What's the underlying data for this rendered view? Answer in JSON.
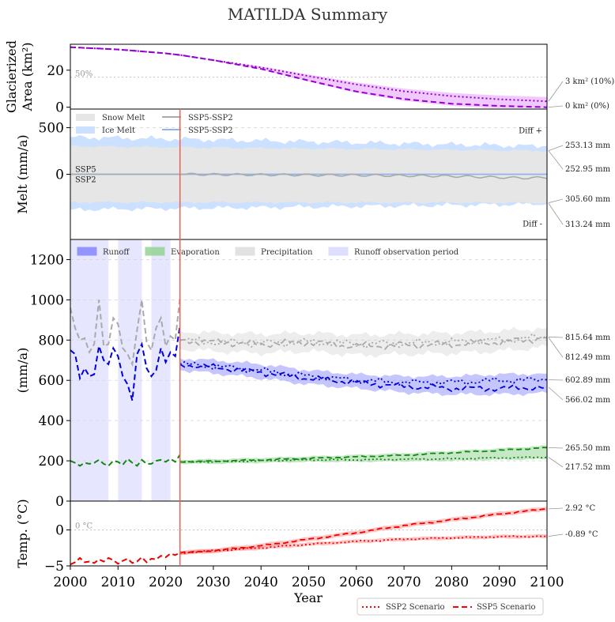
{
  "chart_data": {
    "type": "line",
    "title": "MATILDA Summary",
    "x_axis": {
      "label": "Year",
      "range": [
        2000,
        2100
      ],
      "ticks": [
        "2000",
        "2010",
        "2020",
        "2030",
        "2040",
        "2050",
        "2060",
        "2070",
        "2080",
        "2090",
        "2100"
      ]
    },
    "observation_marker_year": 2023,
    "scenario_legend": [
      {
        "label": "SSP2 Scenario",
        "style": "dotted",
        "color": "#ff0000"
      },
      {
        "label": "SSP5 Scenario",
        "style": "dashed",
        "color": "#ff0000"
      }
    ],
    "panels": [
      {
        "id": "glacier",
        "ylabel_lines": [
          "Glacierized",
          "Area (km²)"
        ],
        "ylim": [
          -1,
          34
        ],
        "yticks": [
          "0",
          "20"
        ],
        "reference_line": {
          "value": 16.2,
          "label": "50%"
        },
        "series": [
          {
            "name": "SSP2",
            "color": "#9400d3",
            "x": [
              2000,
              2010,
              2020,
              2023,
              2030,
              2040,
              2050,
              2060,
              2070,
              2080,
              2090,
              2100
            ],
            "values": [
              32.4,
              31.2,
              29.1,
              28.2,
              25.4,
              21.5,
              16.8,
              12.3,
              8.6,
              6.0,
              4.3,
              3.2
            ]
          },
          {
            "name": "SSP5",
            "color": "#9400d3",
            "x": [
              2000,
              2010,
              2020,
              2023,
              2030,
              2040,
              2050,
              2060,
              2070,
              2080,
              2090,
              2100
            ],
            "values": [
              32.4,
              31.2,
              29.1,
              28.2,
              25.4,
              20.7,
              14.4,
              8.5,
              4.4,
              1.9,
              0.7,
              0.0
            ]
          }
        ],
        "end_labels": [
          "3 km² (10%)",
          "0 km² (0%)"
        ]
      },
      {
        "id": "melt",
        "ylabel_lines": [
          "Melt (mm/a)"
        ],
        "ylim": [
          -700,
          700
        ],
        "yticks": [
          "0",
          "500"
        ],
        "legend": [
          {
            "label": "Snow Melt",
            "kind": "patch",
            "color": "#e6e6e6"
          },
          {
            "label": "Ice Melt",
            "kind": "patch",
            "color": "#cce0ff"
          },
          {
            "label": "SSP5-SSP2",
            "kind": "line",
            "color": "#aaaaaa"
          },
          {
            "label": "SSP5-SSP2",
            "kind": "line",
            "color": "#8fb4ea"
          }
        ],
        "snow_melt_band": {
          "upper": 300,
          "lower": -300
        },
        "ice_melt_band": {
          "upper": 400,
          "lower": -380
        },
        "diff_line_snow": {
          "x": [
            2000,
            2023,
            2040,
            2060,
            2080,
            2095,
            2100
          ],
          "values": [
            0,
            0,
            -5,
            -10,
            -20,
            -40,
            -35
          ]
        },
        "diff_line_ice": {
          "x": [
            2000,
            2100
          ],
          "values": [
            0,
            0
          ]
        },
        "inline_labels": [
          "SSP5",
          "SSP2",
          "Diff +",
          "Diff -"
        ],
        "end_labels": [
          "253.13 mm",
          "252.95 mm",
          "305.60 mm",
          "313.24 mm"
        ]
      },
      {
        "id": "water",
        "ylabel_lines": [
          "(mm/a)"
        ],
        "ylim": [
          0,
          1300
        ],
        "yticks": [
          "0",
          "200",
          "400",
          "600",
          "800",
          "1000",
          "1200"
        ],
        "legend": [
          {
            "label": "Runoff",
            "color": "#8080ff"
          },
          {
            "label": "Evaporation",
            "color": "#8fd18f"
          },
          {
            "label": "Precipitation",
            "color": "#dcdcdc"
          },
          {
            "label": "Runoff observation period",
            "color": "#d6d6ff"
          }
        ],
        "observation_periods": [
          [
            2000,
            2008
          ],
          [
            2010,
            2015
          ],
          [
            2017,
            2021
          ]
        ],
        "historic": {
          "x": [
            2000,
            2001,
            2002,
            2003,
            2004,
            2005,
            2006,
            2007,
            2008,
            2009,
            2010,
            2011,
            2012,
            2013,
            2014,
            2015,
            2016,
            2017,
            2018,
            2019,
            2020,
            2021,
            2022,
            2023
          ],
          "precipitation": [
            960,
            860,
            800,
            810,
            740,
            780,
            1000,
            770,
            780,
            910,
            880,
            760,
            730,
            680,
            850,
            1000,
            790,
            750,
            860,
            910,
            770,
            820,
            800,
            1010
          ],
          "runoff": [
            750,
            730,
            610,
            660,
            620,
            630,
            770,
            700,
            680,
            760,
            720,
            620,
            580,
            500,
            730,
            780,
            660,
            620,
            650,
            760,
            690,
            740,
            720,
            870
          ],
          "evaporation": [
            200,
            190,
            175,
            190,
            185,
            190,
            205,
            185,
            175,
            200,
            195,
            180,
            210,
            190,
            175,
            205,
            185,
            185,
            200,
            205,
            195,
            210,
            195,
            230
          ]
        },
        "future": {
          "x": [
            2023,
            2030,
            2040,
            2050,
            2060,
            2070,
            2080,
            2090,
            2100
          ],
          "precip_ssp2": [
            800,
            790,
            785,
            790,
            780,
            785,
            790,
            800,
            815
          ],
          "precip_ssp5": [
            800,
            790,
            780,
            790,
            770,
            775,
            780,
            790,
            812
          ],
          "runoff_ssp2": [
            680,
            670,
            650,
            620,
            600,
            590,
            590,
            600,
            603
          ],
          "runoff_ssp5": [
            680,
            665,
            640,
            610,
            590,
            570,
            560,
            560,
            566
          ],
          "evap_ssp2": [
            195,
            195,
            200,
            205,
            205,
            208,
            210,
            215,
            218
          ],
          "evap_ssp5": [
            195,
            198,
            205,
            212,
            220,
            228,
            240,
            252,
            266
          ]
        },
        "end_labels": [
          "815.64 mm",
          "812.49 mm",
          "602.89 mm",
          "566.02 mm",
          "265.50 mm",
          "217.52 mm"
        ]
      },
      {
        "id": "temperature",
        "ylabel_lines": [
          "Temp. (°C)"
        ],
        "ylim": [
          -5,
          4
        ],
        "yticks": [
          "−5",
          "0"
        ],
        "reference_line": {
          "value": 0,
          "label": "0 °C"
        },
        "historic": {
          "x": [
            2000,
            2001,
            2002,
            2003,
            2004,
            2005,
            2006,
            2007,
            2008,
            2009,
            2010,
            2011,
            2012,
            2013,
            2014,
            2015,
            2016,
            2017,
            2018,
            2019,
            2020,
            2021,
            2022,
            2023
          ],
          "values": [
            -4.8,
            -4.5,
            -3.9,
            -4.5,
            -4.4,
            -4.6,
            -4.1,
            -4.4,
            -3.9,
            -4.2,
            -4.7,
            -4.3,
            -4.0,
            -4.6,
            -4.4,
            -3.8,
            -4.5,
            -4.0,
            -4.1,
            -3.6,
            -3.8,
            -3.3,
            -3.5,
            -3.2
          ]
        },
        "future": {
          "x": [
            2023,
            2030,
            2040,
            2050,
            2060,
            2070,
            2080,
            2090,
            2100
          ],
          "ssp2": [
            -3.2,
            -2.9,
            -2.5,
            -2.0,
            -1.6,
            -1.3,
            -1.1,
            -0.95,
            -0.89
          ],
          "ssp5": [
            -3.2,
            -2.9,
            -2.2,
            -1.3,
            -0.4,
            0.6,
            1.4,
            2.2,
            2.92
          ]
        },
        "end_labels": [
          "2.92 °C",
          "-0.89 °C"
        ]
      }
    ]
  }
}
